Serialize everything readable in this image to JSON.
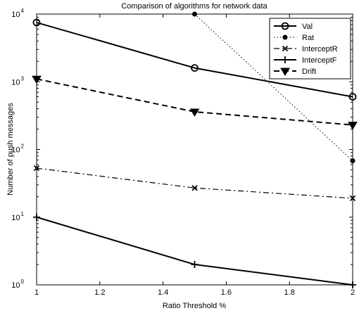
{
  "chart_data": {
    "type": "line",
    "title": "Comparison of algorithms for network data",
    "xlabel": "Ratio Threshold %",
    "ylabel": "Number of push messages",
    "xlim": [
      1,
      2
    ],
    "ylim": [
      1,
      10000
    ],
    "yscale": "log",
    "grid": false,
    "legend_position": "top-right",
    "x_ticks": [
      "1",
      "1.2",
      "1.4",
      "1.6",
      "1.8",
      "2"
    ],
    "x_tick_values": [
      1,
      1.2,
      1.4,
      1.6,
      1.8,
      2
    ],
    "y_tick_values": [
      1,
      10,
      100,
      1000,
      10000
    ],
    "y_tick_bases": [
      "10",
      "10",
      "10",
      "10",
      "10"
    ],
    "y_tick_exponents": [
      "0",
      "1",
      "2",
      "3",
      "4"
    ],
    "series": [
      {
        "name": "Val",
        "style": "solid",
        "marker": "circle",
        "x": [
          1,
          1.5,
          2
        ],
        "y": [
          7500,
          1600,
          600
        ]
      },
      {
        "name": "Rat",
        "style": "dotted",
        "marker": "dot",
        "x": [
          1.5,
          2
        ],
        "y": [
          10000,
          68
        ]
      },
      {
        "name": "InterceptR",
        "style": "dashdot",
        "marker": "x",
        "x": [
          1,
          1.5,
          2
        ],
        "y": [
          53,
          27,
          19
        ]
      },
      {
        "name": "InterceptF",
        "style": "solid",
        "marker": "plus",
        "x": [
          1,
          1.5,
          2
        ],
        "y": [
          10,
          2,
          1
        ]
      },
      {
        "name": "Drift",
        "style": "dashed",
        "marker": "triangle-down",
        "x": [
          1,
          1.5,
          2
        ],
        "y": [
          1100,
          360,
          230
        ]
      }
    ]
  }
}
